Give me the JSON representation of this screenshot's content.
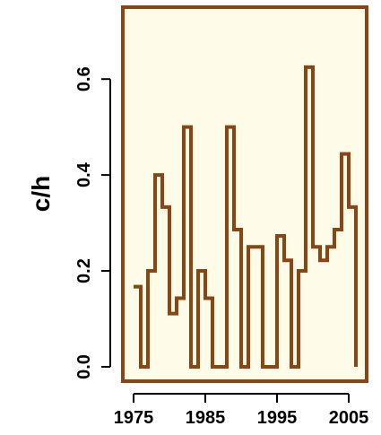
{
  "chart_data": {
    "type": "line",
    "step": true,
    "title": "",
    "xlabel": "",
    "ylabel": "c/h",
    "x": [
      1975,
      1976,
      1977,
      1978,
      1979,
      1980,
      1981,
      1982,
      1983,
      1984,
      1985,
      1986,
      1987,
      1988,
      1989,
      1990,
      1991,
      1992,
      1993,
      1994,
      1995,
      1996,
      1997,
      1998,
      1999,
      2000,
      2001,
      2002,
      2003,
      2004,
      2005,
      2006
    ],
    "y": [
      0.167,
      0.0,
      0.2,
      0.4,
      0.333,
      0.111,
      0.143,
      0.5,
      0.0,
      0.2,
      0.143,
      0.0,
      0.0,
      0.5,
      0.286,
      0.0,
      0.25,
      0.25,
      0.0,
      0.0,
      0.273,
      0.222,
      0.0,
      0.2,
      0.625,
      0.25,
      0.222,
      0.25,
      0.286,
      0.444,
      0.333,
      0.0
    ],
    "xlim": [
      1973.5,
      2007.5
    ],
    "ylim": [
      -0.03,
      0.75
    ],
    "x_ticks": [
      1975,
      1985,
      1995,
      2005
    ],
    "y_ticks": [
      0.0,
      0.2,
      0.4,
      0.6
    ],
    "x_tick_labels": [
      "1975",
      "1985",
      "1995",
      "2005"
    ],
    "y_tick_labels": [
      "0.0",
      "0.2",
      "0.4",
      "0.6"
    ],
    "grid": false,
    "legend": "none",
    "colors": {
      "line": "#8B4513",
      "plot_background": "#FFFBE9",
      "frame": "#8B4513"
    }
  }
}
